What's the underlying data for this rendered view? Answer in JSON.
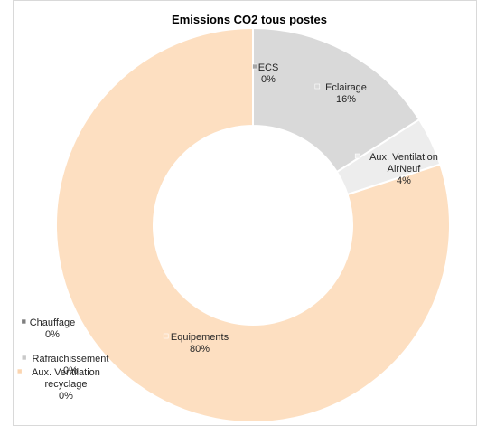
{
  "chart_data": {
    "type": "pie",
    "variant": "donut",
    "title": "Emissions CO2 tous postes",
    "slices": [
      {
        "lines": [
          "ECS"
        ],
        "pct_label": "0%",
        "value": 0,
        "color": "#a6a6a6"
      },
      {
        "lines": [
          "Eclairage"
        ],
        "pct_label": "16%",
        "value": 16,
        "color": "#d9d9d9"
      },
      {
        "lines": [
          "Aux. Ventilation",
          "AirNeuf"
        ],
        "pct_label": "4%",
        "value": 4,
        "color": "#ededed"
      },
      {
        "lines": [
          "Equipements"
        ],
        "pct_label": "80%",
        "value": 80,
        "color": "#fddfc1"
      },
      {
        "lines": [
          "Chauffage"
        ],
        "pct_label": "0%",
        "value": 0,
        "color": "#7f7f7f"
      },
      {
        "lines": [
          "Rafraichissement"
        ],
        "pct_label": "0%",
        "value": 0,
        "color": "#c9c9c9"
      },
      {
        "lines": [
          "Aux. Ventilation",
          "recyclage"
        ],
        "pct_label": "0%",
        "value": 0,
        "color": "#fbd5b0"
      }
    ]
  }
}
